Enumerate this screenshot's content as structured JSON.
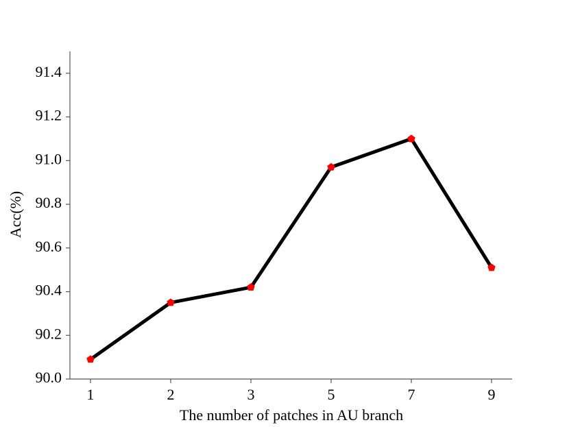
{
  "chart_data": {
    "type": "line",
    "x_label": "The number of patches in AU branch",
    "y_label": "Acc(%)",
    "categories": [
      "1",
      "2",
      "3",
      "5",
      "7",
      "9"
    ],
    "series": [
      {
        "color": "#000000",
        "marker_color": "#ff0000",
        "values": [
          90.09,
          90.35,
          90.42,
          90.97,
          91.1,
          90.51
        ]
      }
    ],
    "ylim": [
      90.0,
      91.5
    ],
    "yticks": [
      {
        "value": 90.0,
        "label": "90.0"
      },
      90.2,
      90.4,
      90.6,
      90.8,
      {
        "value": 91.0,
        "label": "91.0"
      },
      91.2,
      91.4
    ],
    "grid": false
  }
}
